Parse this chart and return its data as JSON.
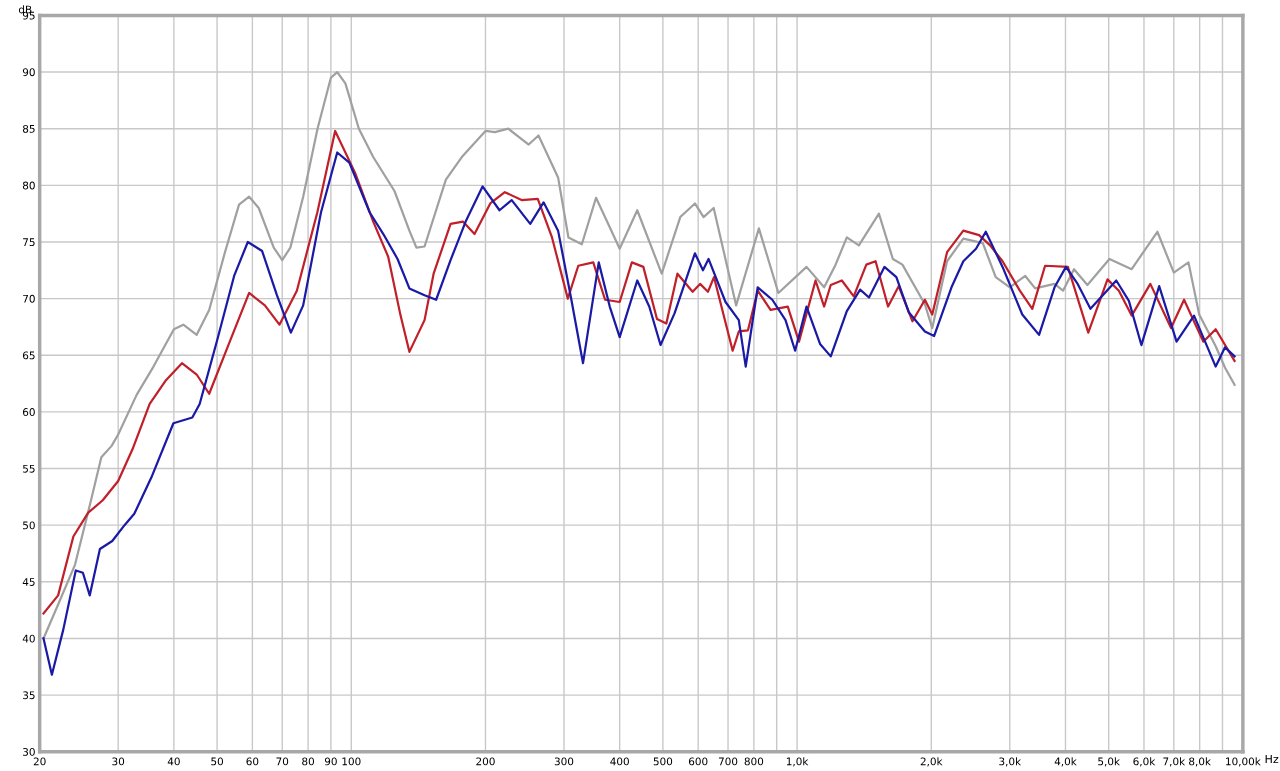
{
  "chart_data": {
    "type": "line",
    "xlabel": "Hz",
    "ylabel": "dB",
    "log": "x",
    "grid": true,
    "marker": "none",
    "line_style": "solid",
    "xlim": [
      20,
      10000
    ],
    "ylim": [
      30,
      95
    ],
    "xticks": [
      20,
      30,
      40,
      50,
      60,
      70,
      80,
      90,
      100,
      200,
      300,
      400,
      500,
      600,
      700,
      800,
      {
        "value": 900,
        "label": null
      },
      {
        "value": 1000,
        "label": "1,0k"
      },
      {
        "value": 2000,
        "label": "2,0k"
      },
      {
        "value": 3000,
        "label": "3,0k"
      },
      {
        "value": 4000,
        "label": "4,0k"
      },
      {
        "value": 5000,
        "label": "5,0k"
      },
      {
        "value": 6000,
        "label": "6,0k"
      },
      {
        "value": 7000,
        "label": "7,0k"
      },
      {
        "value": 8000,
        "label": "8,0k"
      },
      {
        "value": 9000,
        "label": null
      },
      {
        "value": 10000,
        "label": "10,00k"
      }
    ],
    "yticks": [
      30,
      35,
      40,
      45,
      50,
      55,
      60,
      65,
      70,
      75,
      80,
      85,
      90,
      95
    ],
    "series": [
      {
        "color": "#a0a0a0",
        "x": [
          20.4,
          22,
          24,
          26,
          27.5,
          29,
          30,
          33,
          36,
          40,
          42,
          45,
          48,
          52,
          56,
          59,
          62,
          67,
          70,
          73,
          78,
          84,
          90,
          93,
          97,
          104,
          112,
          125,
          135,
          140,
          146,
          163,
          177,
          200,
          210,
          225,
          250,
          263,
          291,
          307,
          329,
          354,
          380,
          400,
          438,
          497,
          547,
          590,
          617,
          650,
          730,
          821,
          908,
          1050,
          1150,
          1220,
          1293,
          1376,
          1526,
          1640,
          1723,
          1935,
          2010,
          2170,
          2360,
          2610,
          2790,
          3000,
          3250,
          3420,
          3780,
          3950,
          4180,
          4480,
          5020,
          5630,
          6430,
          7000,
          7550,
          7980,
          8690,
          9120,
          9580
        ],
        "values": [
          40.0,
          43,
          46.5,
          52,
          56,
          57,
          58,
          61.5,
          64,
          67.3,
          67.7,
          66.8,
          69,
          74,
          78.3,
          79,
          78,
          74.5,
          73.4,
          74.5,
          79,
          85,
          89.5,
          90,
          89,
          85,
          82.5,
          79.5,
          76,
          74.5,
          74.6,
          80.5,
          82.5,
          84.8,
          84.7,
          85,
          83.6,
          84.4,
          80.7,
          75.4,
          74.8,
          78.9,
          76.3,
          74.4,
          77.8,
          72.2,
          77.2,
          78.4,
          77.2,
          78,
          69.4,
          76.2,
          70.5,
          72.8,
          71,
          73,
          75.4,
          74.7,
          77.5,
          73.5,
          73,
          69.5,
          67.4,
          73.3,
          75.3,
          74.9,
          71.9,
          71,
          72,
          70.9,
          71.3,
          70.7,
          72.6,
          71.2,
          73.5,
          72.6,
          75.9,
          72.3,
          73.2,
          68.6,
          65.8,
          63.9,
          62.4
        ]
      },
      {
        "color": "#c0202a",
        "x": [
          20.4,
          22,
          23.8,
          25.7,
          27.7,
          30,
          32.3,
          35.3,
          38.4,
          41.7,
          45,
          48,
          53,
          59,
          64,
          69,
          75.5,
          83.9,
          92,
          102,
          112,
          121,
          129,
          135,
          146,
          153,
          167,
          178,
          189,
          205,
          221,
          241,
          262,
          282,
          306,
          323,
          349,
          371,
          400,
          426,
          452,
          485,
          509,
          539,
          583,
          606,
          631,
          651,
          717,
          740,
          776,
          816,
          872,
          953,
          1010,
          1100,
          1150,
          1190,
          1260,
          1340,
          1430,
          1500,
          1600,
          1690,
          1815,
          1935,
          2010,
          2170,
          2360,
          2560,
          2710,
          2890,
          3160,
          3370,
          3600,
          4050,
          4500,
          4970,
          5270,
          5630,
          6200,
          6900,
          7380,
          8150,
          8690,
          9580
        ],
        "values": [
          42.2,
          43.8,
          49,
          51.1,
          52.2,
          53.9,
          56.7,
          60.7,
          62.8,
          64.3,
          63.3,
          61.6,
          65.9,
          70.5,
          69.4,
          67.7,
          70.7,
          77.6,
          84.8,
          81.1,
          76.8,
          73.7,
          68.5,
          65.3,
          68.1,
          72.2,
          76.6,
          76.8,
          75.7,
          78.4,
          79.4,
          78.7,
          78.8,
          75.4,
          70,
          72.9,
          73.2,
          69.9,
          69.7,
          73.2,
          72.8,
          68.2,
          67.8,
          72.2,
          70.6,
          71.3,
          70.6,
          71.9,
          65.4,
          67.1,
          67.2,
          70.7,
          69,
          69.3,
          66.2,
          71.6,
          69.3,
          71.2,
          71.6,
          70.2,
          73,
          73.3,
          69.3,
          71.1,
          68,
          69.9,
          68.6,
          74.1,
          76,
          75.6,
          74.7,
          73.3,
          70.7,
          69.1,
          72.9,
          72.8,
          67,
          71.7,
          70.7,
          68.5,
          71.3,
          67.4,
          69.9,
          66.2,
          67.3,
          64.5
        ]
      },
      {
        "color": "#1a1aa6",
        "x": [
          20.4,
          21.3,
          22.6,
          24.1,
          25,
          25.9,
          27.3,
          29.1,
          31,
          32.6,
          35.6,
          39.9,
          44,
          45.7,
          50,
          54.6,
          58.6,
          63.1,
          68.1,
          73.2,
          78,
          85.5,
          93,
          99,
          110,
          118,
          127,
          135,
          146,
          155,
          167,
          181,
          197,
          215,
          229,
          252,
          270,
          291,
          311,
          331,
          359,
          380,
          400,
          438,
          466,
          494,
          531,
          590,
          615,
          633,
          691,
          740,
          767,
          816,
          880,
          942,
          990,
          1050,
          1126,
          1190,
          1293,
          1385,
          1450,
          1570,
          1670,
          1780,
          1935,
          2030,
          2220,
          2360,
          2520,
          2650,
          2890,
          3200,
          3490,
          3780,
          4010,
          4260,
          4550,
          5200,
          5550,
          5920,
          6490,
          7100,
          7770,
          8690,
          9120,
          9580
        ],
        "values": [
          40.0,
          36.8,
          40.8,
          46.0,
          45.8,
          43.8,
          47.9,
          48.6,
          50,
          51,
          54.2,
          59,
          59.5,
          60.7,
          66.3,
          72,
          75,
          74.2,
          70.3,
          67,
          69.4,
          77.6,
          82.9,
          82,
          77.6,
          75.7,
          73.5,
          70.9,
          70.3,
          69.9,
          73.4,
          76.9,
          79.9,
          77.8,
          78.7,
          76.6,
          78.5,
          76,
          70.1,
          64.3,
          73.2,
          69.3,
          66.6,
          71.6,
          69.3,
          65.9,
          68.7,
          74,
          72.5,
          73.5,
          69.7,
          68.1,
          64,
          71,
          69.9,
          68.1,
          65.4,
          69.3,
          66,
          64.9,
          68.9,
          70.8,
          70.1,
          72.8,
          71.9,
          68.8,
          67.1,
          66.7,
          71,
          73.3,
          74.4,
          75.9,
          72.8,
          68.6,
          66.8,
          71,
          72.8,
          71.3,
          69.1,
          71.6,
          69.8,
          65.9,
          71.1,
          66.2,
          68.5,
          64,
          65.7,
          64.9
        ]
      }
    ]
  }
}
